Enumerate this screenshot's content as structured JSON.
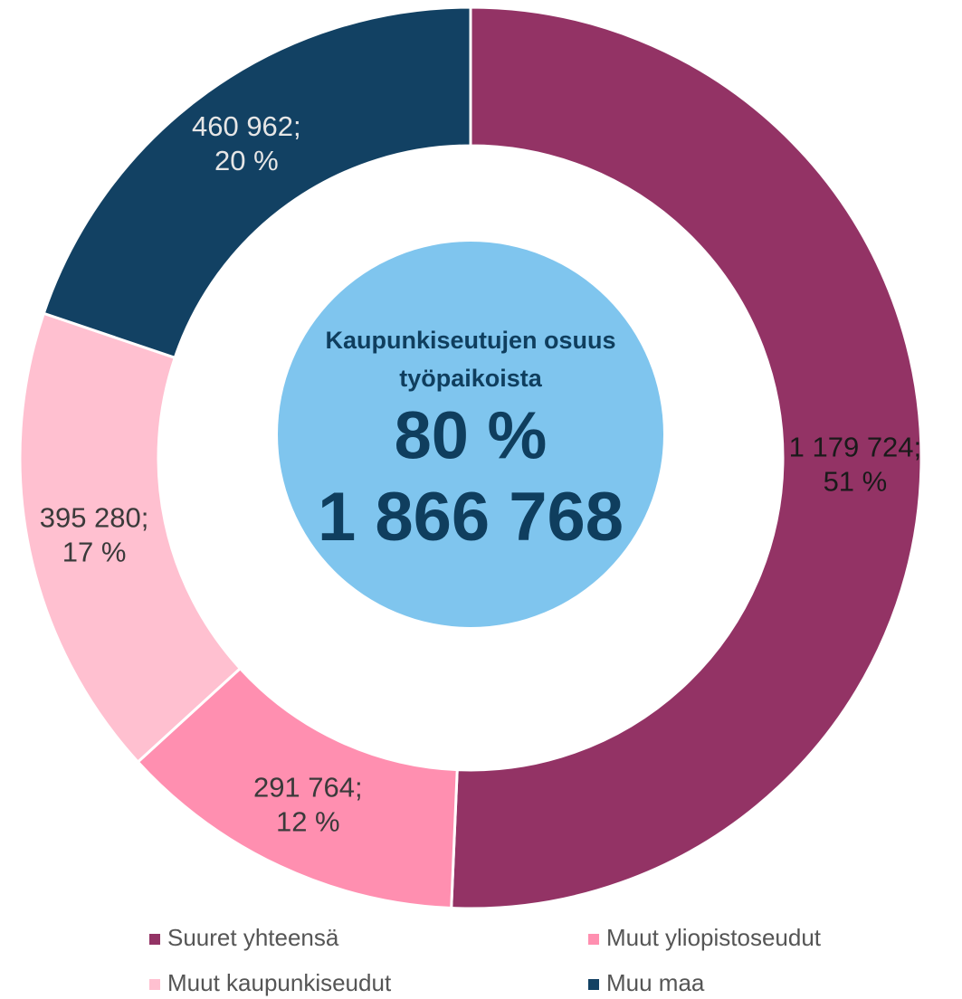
{
  "chart_data": {
    "type": "donut",
    "categories": [
      "Suuret yhteensä",
      "Muut yliopistoseudut",
      "Muut kaupunkiseudut",
      "Muu maa"
    ],
    "values": [
      1179724,
      291764,
      395280,
      460962
    ],
    "value_labels": [
      [
        "1 179 724;",
        "51 %"
      ],
      [
        "291 764;",
        "12 %"
      ],
      [
        "395 280;",
        "17 %"
      ],
      [
        "460 962;",
        "20 %"
      ]
    ],
    "colors": [
      "#933365",
      "#ff8fb0",
      "#ffc0d0",
      "#124163"
    ],
    "center": {
      "title": [
        "Kaupunkiseutujen osuus",
        "työpaikoista"
      ],
      "share": "80 %",
      "total": "1 866 768"
    },
    "legend": "bottom"
  }
}
